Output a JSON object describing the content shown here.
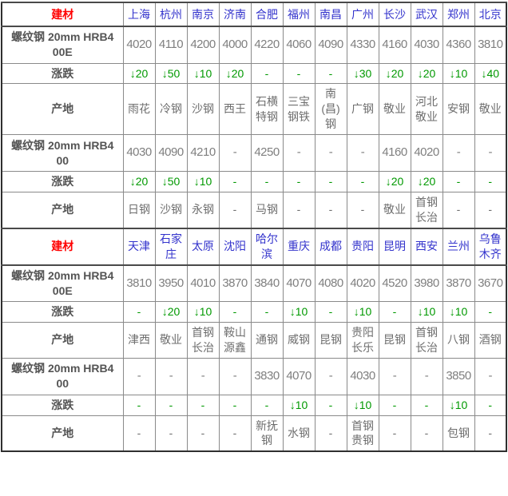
{
  "page_title": "建材价格表",
  "labels": {
    "corner_header": "建材",
    "rebar_hrb400e": "螺纹钢 20mm HRB400E",
    "rebar_hrb400": "螺纹钢 20mm HRB400",
    "change": "涨跌",
    "origin": "产地",
    "down_arrow_icon": "↓",
    "empty_value": "-"
  },
  "colors": {
    "header_red": "#ff0000",
    "city_blue": "#3333cc",
    "change_green": "#009900",
    "value_gray": "#7f7f7f",
    "label_gray": "#545454",
    "grid_gray": "#8a8a8a",
    "frame_dark": "#2f2f2f",
    "background": "#ffffff"
  },
  "chart_data": [
    {
      "type": "table",
      "header_label": "建材",
      "cities": [
        "上海",
        "杭州",
        "南京",
        "济南",
        "合肥",
        "福州",
        "南昌",
        "广州",
        "长沙",
        "武汉",
        "郑州",
        "北京"
      ],
      "rows": [
        {
          "kind": "price",
          "label": "螺纹钢 20mm HRB400E",
          "values": [
            "4020",
            "4110",
            "4200",
            "4000",
            "4220",
            "4060",
            "4090",
            "4330",
            "4160",
            "4030",
            "4360",
            "3810"
          ]
        },
        {
          "kind": "change",
          "label": "涨跌",
          "values": [
            "↓20",
            "↓50",
            "↓10",
            "↓20",
            "-",
            "-",
            "-",
            "↓30",
            "↓20",
            "↓20",
            "↓10",
            "↓40"
          ]
        },
        {
          "kind": "origin",
          "label": "产地",
          "values": [
            "雨花",
            "冷钢",
            "沙钢",
            "西王",
            "石横特钢",
            "三宝钢铁",
            "南(昌)钢",
            "广钢",
            "敬业",
            "河北敬业",
            "安钢",
            "敬业"
          ]
        },
        {
          "kind": "price",
          "label": "螺纹钢 20mm HRB400",
          "values": [
            "4030",
            "4090",
            "4210",
            "-",
            "4250",
            "-",
            "-",
            "-",
            "4160",
            "4020",
            "-",
            "-"
          ]
        },
        {
          "kind": "change",
          "label": "涨跌",
          "values": [
            "↓20",
            "↓50",
            "↓10",
            "-",
            "-",
            "-",
            "-",
            "-",
            "↓20",
            "↓20",
            "-",
            "-"
          ]
        },
        {
          "kind": "origin",
          "label": "产地",
          "values": [
            "日钢",
            "沙钢",
            "永钢",
            "-",
            "马钢",
            "-",
            "-",
            "-",
            "敬业",
            "首钢长治",
            "-",
            "-"
          ]
        }
      ]
    },
    {
      "type": "table",
      "header_label": "建材",
      "cities": [
        "天津",
        "石家庄",
        "太原",
        "沈阳",
        "哈尔滨",
        "重庆",
        "成都",
        "贵阳",
        "昆明",
        "西安",
        "兰州",
        "乌鲁木齐"
      ],
      "rows": [
        {
          "kind": "price",
          "label": "螺纹钢 20mm HRB400E",
          "values": [
            "3810",
            "3950",
            "4010",
            "3870",
            "3840",
            "4070",
            "4080",
            "4020",
            "4520",
            "3980",
            "3870",
            "3670"
          ]
        },
        {
          "kind": "change",
          "label": "涨跌",
          "values": [
            "-",
            "↓20",
            "↓10",
            "-",
            "-",
            "↓10",
            "-",
            "↓10",
            "-",
            "↓10",
            "↓10",
            "-"
          ]
        },
        {
          "kind": "origin",
          "label": "产地",
          "values": [
            "津西",
            "敬业",
            "首钢长治",
            "鞍山源鑫",
            "通钢",
            "威钢",
            "昆钢",
            "贵阳长乐",
            "昆钢",
            "首钢长治",
            "八钢",
            "酒钢"
          ]
        },
        {
          "kind": "price",
          "label": "螺纹钢 20mm HRB400",
          "values": [
            "-",
            "-",
            "-",
            "-",
            "3830",
            "4070",
            "-",
            "4030",
            "-",
            "-",
            "3850",
            "-"
          ]
        },
        {
          "kind": "change",
          "label": "涨跌",
          "values": [
            "-",
            "-",
            "-",
            "-",
            "-",
            "↓10",
            "-",
            "↓10",
            "-",
            "-",
            "↓10",
            "-"
          ]
        },
        {
          "kind": "origin",
          "label": "产地",
          "values": [
            "-",
            "-",
            "-",
            "-",
            "新抚钢",
            "水钢",
            "-",
            "首钢贵钢",
            "-",
            "-",
            "包钢",
            "-"
          ]
        }
      ]
    }
  ]
}
